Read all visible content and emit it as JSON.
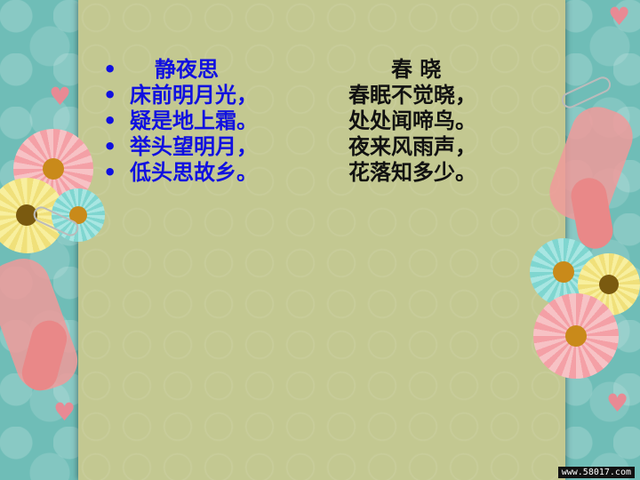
{
  "left_poem": {
    "title": "静夜思",
    "lines": [
      "床前明月光，",
      "疑是地上霜。",
      "举头望明月，",
      "低头思故乡。"
    ]
  },
  "right_poem": {
    "title": "春 晓",
    "lines": [
      "春眠不觉晓，",
      "处处闻啼鸟。",
      "夜来风雨声，",
      "花落知多少。"
    ]
  },
  "website": "www.58017.com",
  "bullet_glyph": "•"
}
